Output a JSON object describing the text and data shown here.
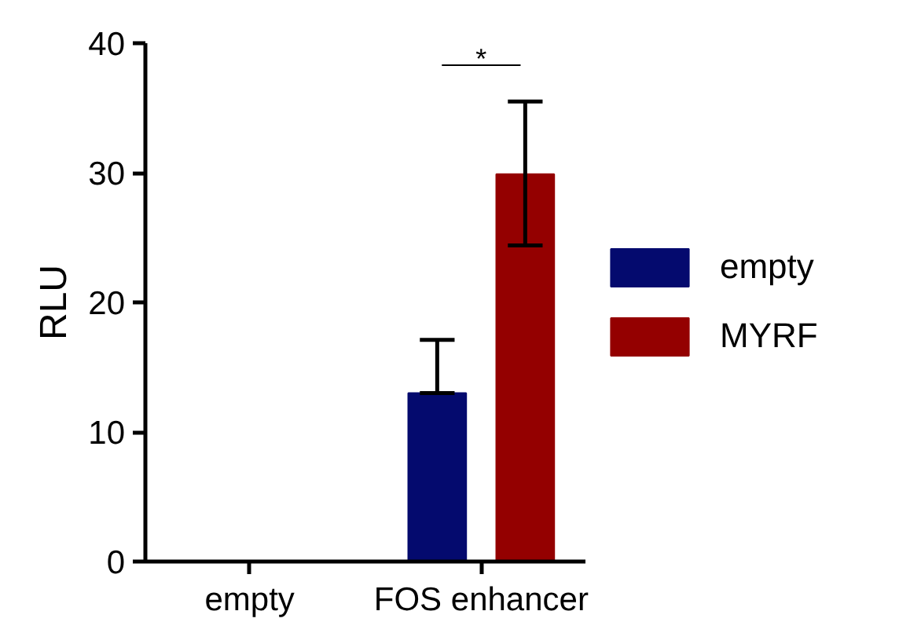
{
  "chart_data": {
    "type": "bar",
    "ylabel": "RLU",
    "categories": [
      "empty",
      "FOS enhancer"
    ],
    "series": [
      {
        "name": "empty",
        "color": "#040a6e",
        "values": [
          null,
          13.0
        ],
        "errors": [
          null,
          [
            13.0,
            17.1
          ]
        ]
      },
      {
        "name": "MYRF",
        "color": "#940000",
        "values": [
          null,
          29.9
        ],
        "errors": [
          null,
          [
            24.4,
            35.5
          ]
        ]
      }
    ],
    "ylim": [
      0,
      40
    ],
    "yticks": [
      0,
      10,
      20,
      30,
      40
    ],
    "grid": false,
    "legend": "right",
    "annotations": [
      "*"
    ]
  }
}
